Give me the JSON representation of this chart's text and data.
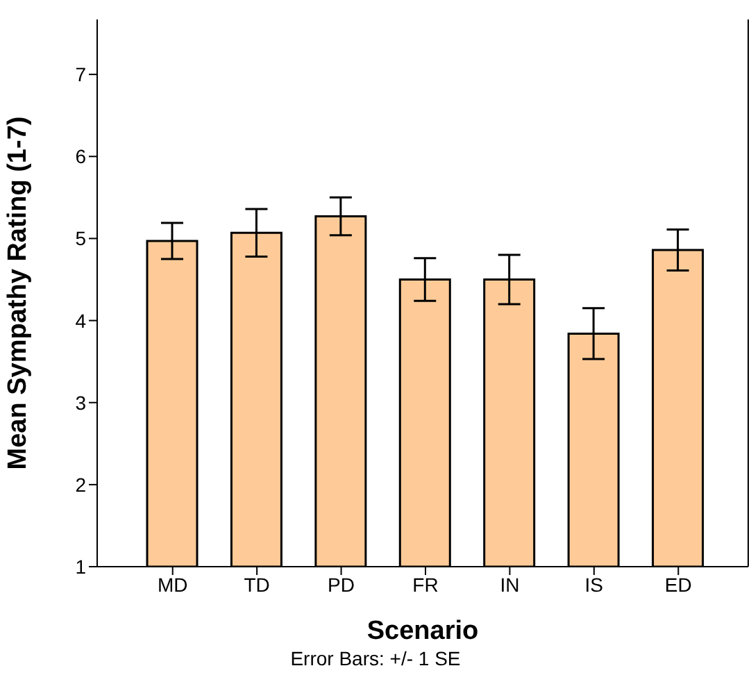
{
  "chart_data": {
    "type": "bar",
    "xlabel": "Scenario",
    "ylabel": "Mean Sympathy Rating (1-7)",
    "annotations": [
      "Error Bars: +/- 1 SE"
    ],
    "categories": [
      "MD",
      "TD",
      "PD",
      "FR",
      "IN",
      "IS",
      "ED"
    ],
    "values": [
      4.97,
      5.07,
      5.27,
      4.5,
      4.5,
      3.84,
      4.86
    ],
    "errors": [
      0.22,
      0.29,
      0.23,
      0.26,
      0.3,
      0.31,
      0.25
    ],
    "color": "#fecb98",
    "ylim": [
      1,
      7.67
    ],
    "yticks": [
      1,
      2,
      3,
      4,
      5,
      6,
      7
    ],
    "grid": false,
    "legend": false
  }
}
